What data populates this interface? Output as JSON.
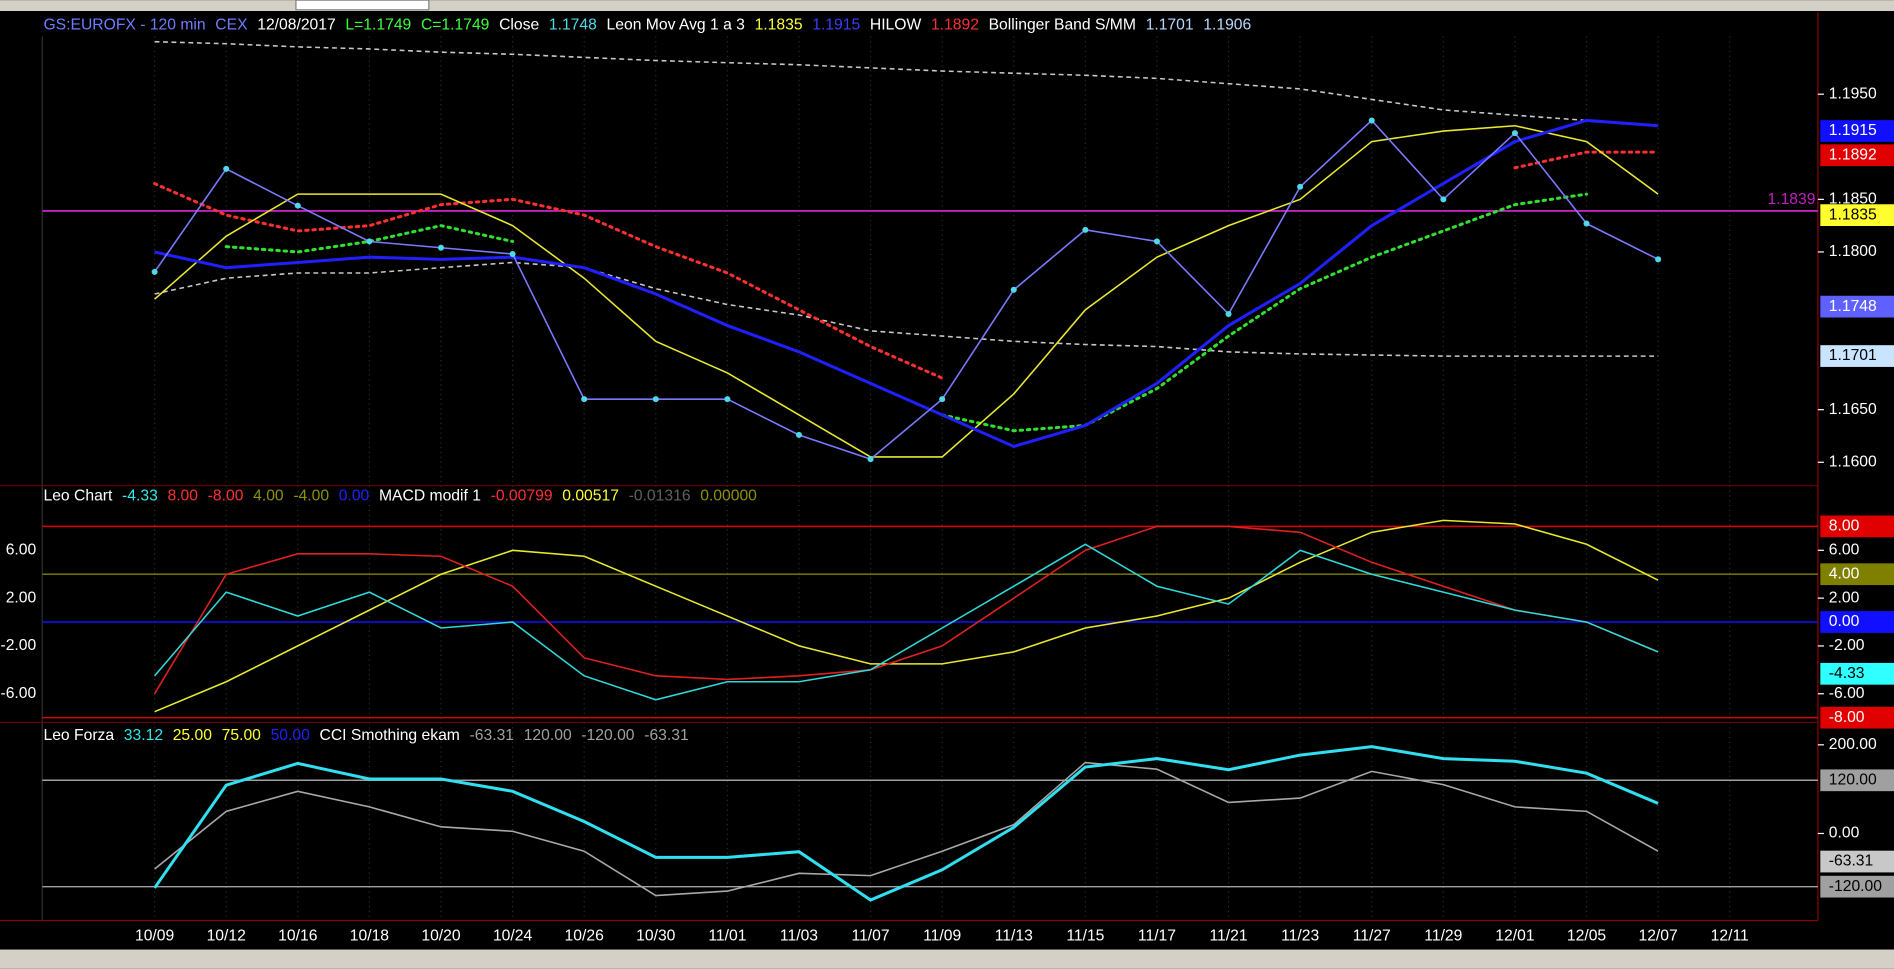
{
  "chart_data": [
    {
      "type": "line",
      "legend": [
        {
          "text": "GS:EUROFX - 120 min",
          "color": "#6f7cff"
        },
        {
          "text": "CEX",
          "color": "#6f7cff"
        },
        {
          "text": "12/08/2017",
          "color": "#ffffff"
        },
        {
          "text": "L=1.1749",
          "color": "#3cff3c"
        },
        {
          "text": "C=1.1749",
          "color": "#3cff3c"
        },
        {
          "text": "Close",
          "color": "#ffffff"
        },
        {
          "text": "1.1748",
          "color": "#4fd8e8"
        },
        {
          "text": "Leon Mov Avg 1 a 3",
          "color": "#ffffff"
        },
        {
          "text": "1.1835",
          "color": "#ffff3c"
        },
        {
          "text": "1.1915",
          "color": "#3c3cff"
        },
        {
          "text": "HILOW",
          "color": "#ffffff"
        },
        {
          "text": "1.1892",
          "color": "#ff3030"
        },
        {
          "text": "Bollinger Band S/MM",
          "color": "#ffffff"
        },
        {
          "text": "1.1701",
          "color": "#b8d8ff"
        },
        {
          "text": "1.1906",
          "color": "#b8d8ff"
        }
      ],
      "categories": [
        "10/09",
        "10/12",
        "10/16",
        "10/18",
        "10/20",
        "10/24",
        "10/26",
        "10/30",
        "11/01",
        "11/03",
        "11/07",
        "11/09",
        "11/13",
        "11/15",
        "11/17",
        "11/21",
        "11/23",
        "11/27",
        "11/29",
        "12/01",
        "12/05",
        "12/07",
        "12/11"
      ],
      "ylim": [
        1.158,
        1.2005
      ],
      "yticks": [
        {
          "value": 1.195,
          "label": "1.1950"
        },
        {
          "value": 1.185,
          "label": "1.1850"
        },
        {
          "value": 1.18,
          "label": "1.1800"
        },
        {
          "value": 1.165,
          "label": "1.1650"
        },
        {
          "value": 1.16,
          "label": "1.1600"
        }
      ],
      "series": [
        {
          "color": "#c8c8c8",
          "dash": "dashed",
          "values": [
            1.2,
            1.1998,
            1.1995,
            1.1993,
            1.199,
            1.1988,
            1.1985,
            1.1982,
            1.198,
            1.1978,
            1.1975,
            1.1972,
            1.197,
            1.1968,
            1.1965,
            1.196,
            1.1955,
            1.1945,
            1.1935,
            1.193,
            1.1925,
            1.192,
            null
          ]
        },
        {
          "color": "#c8c8c8",
          "dash": "dashed",
          "values": [
            1.176,
            1.1775,
            1.178,
            1.178,
            1.1785,
            1.179,
            1.1785,
            1.1765,
            1.175,
            1.174,
            1.1725,
            1.172,
            1.1715,
            1.1712,
            1.171,
            1.1705,
            1.1703,
            1.1702,
            1.1701,
            1.1701,
            1.1701,
            1.1701,
            null
          ]
        },
        {
          "color": "#ff3030",
          "dash": "dotted",
          "values": [
            1.1865,
            1.1835,
            1.182,
            1.1825,
            1.1845,
            1.185,
            1.1835,
            1.1805,
            1.178,
            1.1745,
            1.171,
            1.168,
            null,
            null,
            null,
            null,
            null,
            null,
            null,
            1.188,
            1.1895,
            1.1895,
            null
          ]
        },
        {
          "color": "#30e030",
          "dash": "dotted",
          "values": [
            null,
            1.1805,
            1.18,
            1.181,
            1.1825,
            1.181,
            null,
            null,
            null,
            null,
            null,
            1.1645,
            1.163,
            1.1635,
            1.167,
            1.172,
            1.1765,
            1.1795,
            1.182,
            1.1845,
            1.1855,
            null,
            null
          ]
        },
        {
          "color": "#e8e830",
          "values": [
            1.1755,
            1.1815,
            1.1855,
            1.1855,
            1.1855,
            1.1825,
            1.1775,
            1.1715,
            1.1685,
            1.1645,
            1.1605,
            1.1605,
            1.1665,
            1.1745,
            1.1795,
            1.1825,
            1.185,
            1.1905,
            1.1915,
            1.192,
            1.1905,
            1.1855,
            null
          ]
        },
        {
          "color": "#2020ff",
          "width": 2.5,
          "values": [
            1.18,
            1.1785,
            1.179,
            1.1795,
            1.1793,
            1.1795,
            1.1785,
            1.176,
            1.173,
            1.1705,
            1.1675,
            1.1645,
            1.1615,
            1.1635,
            1.1675,
            1.173,
            1.177,
            1.1825,
            1.1865,
            1.1905,
            1.1925,
            1.192,
            null
          ]
        },
        {
          "color": "#7a7aff",
          "dots": "#4fd8e8",
          "values": [
            1.1781,
            1.1879,
            1.1844,
            1.181,
            1.1804,
            1.1798,
            1.166,
            1.166,
            1.166,
            1.1626,
            1.1603,
            1.166,
            1.1764,
            1.1821,
            1.181,
            1.1741,
            1.1862,
            1.1925,
            1.185,
            1.1913,
            1.1827,
            1.1793,
            null
          ]
        }
      ],
      "lines": [
        {
          "value": 1.1839,
          "label": "1.1839",
          "color": "#c020c0"
        }
      ],
      "markers": [
        {
          "value": 1.1915,
          "label": "1.1915",
          "color": "#1010ff",
          "text_color": "#ffffff"
        },
        {
          "value": 1.1892,
          "label": "1.1892",
          "color": "#e00000",
          "text_color": "#ffffff"
        },
        {
          "value": 1.1835,
          "label": "1.1835",
          "color": "#ffff30",
          "text_color": "#000000"
        },
        {
          "value": 1.1748,
          "label": "1.1748",
          "color": "#6060ff",
          "text_color": "#ffffff"
        },
        {
          "value": 1.1701,
          "label": "1.1701",
          "color": "#c8e4ff",
          "text_color": "#000000"
        }
      ]
    },
    {
      "type": "line",
      "legend": [
        {
          "text": "Leo Chart",
          "color": "#ffffff"
        },
        {
          "text": "-4.33",
          "color": "#30e8e8"
        },
        {
          "text": "8.00",
          "color": "#ff3030"
        },
        {
          "text": "-8.00",
          "color": "#ff3030"
        },
        {
          "text": "4.00",
          "color": "#909000"
        },
        {
          "text": "-4.00",
          "color": "#909000"
        },
        {
          "text": "0.00",
          "color": "#2020ff"
        },
        {
          "text": "MACD modif 1",
          "color": "#ffffff"
        },
        {
          "text": "-0.00799",
          "color": "#ff3030"
        },
        {
          "text": "0.00517",
          "color": "#ffff30"
        },
        {
          "text": "-0.01316",
          "color": "#606060"
        },
        {
          "text": "0.00000",
          "color": "#909000"
        }
      ],
      "ylim": [
        -8.3,
        11.1
      ],
      "yticks": [
        {
          "value": 6,
          "label": "6.00"
        },
        {
          "value": 2,
          "label": "2.00"
        },
        {
          "value": -2,
          "label": "-2.00"
        },
        {
          "value": -6,
          "label": "-6.00"
        }
      ],
      "series": [
        {
          "color": "#e8e830",
          "values": [
            -7.5,
            -5,
            -2,
            1,
            4,
            6,
            5.5,
            3,
            0.5,
            -2,
            -3.5,
            -3.5,
            -2.5,
            -0.5,
            0.5,
            2,
            5,
            7.5,
            8.5,
            8.2,
            6.5,
            3.5,
            null
          ]
        },
        {
          "color": "#e02020",
          "values": [
            -6,
            4,
            5.7,
            5.7,
            5.5,
            3,
            -3,
            -4.5,
            -4.8,
            -4.5,
            -4,
            -2,
            2,
            6,
            8,
            8,
            7.5,
            5,
            3,
            1,
            0,
            -2.5,
            null
          ]
        },
        {
          "color": "#30d8d8",
          "values": [
            -4.5,
            2.5,
            0.5,
            2.5,
            -0.5,
            0,
            -4.5,
            -6.5,
            -5,
            -5,
            -4,
            -0.5,
            3,
            6.5,
            3,
            1.5,
            6,
            4,
            2.5,
            1,
            0,
            -2.5,
            null
          ]
        }
      ],
      "markers": [
        {
          "value": 8,
          "label": "8.00",
          "color": "#e00000",
          "text_color": "#ffffff",
          "line": true
        },
        {
          "value": 4,
          "label": "4.00",
          "color": "#808000",
          "text_color": "#ffffff",
          "line": true
        },
        {
          "value": 0,
          "label": "0.00",
          "color": "#1010ff",
          "text_color": "#ffffff",
          "line": true
        },
        {
          "value": -4.33,
          "label": "-4.33",
          "color": "#30ffff",
          "text_color": "#000000",
          "line": false
        },
        {
          "value": -8,
          "label": "-8.00",
          "color": "#e00000",
          "text_color": "#ffffff",
          "line": true
        }
      ]
    },
    {
      "type": "line",
      "legend": [
        {
          "text": "Leo Forza",
          "color": "#ffffff"
        },
        {
          "text": "33.12",
          "color": "#30e8e8"
        },
        {
          "text": "25.00",
          "color": "#ffff30"
        },
        {
          "text": "75.00",
          "color": "#ffff30"
        },
        {
          "text": "50.00",
          "color": "#2020ff"
        },
        {
          "text": "CCI Smothing ekam",
          "color": "#ffffff"
        },
        {
          "text": "-63.31",
          "color": "#a0a0a0"
        },
        {
          "text": "120.00",
          "color": "#a0a0a0"
        },
        {
          "text": "-120.00",
          "color": "#a0a0a0"
        },
        {
          "text": "-63.31",
          "color": "#a0a0a0"
        }
      ],
      "ylim": [
        -191,
        245
      ],
      "yticks": [
        {
          "value": 200,
          "label": "200.00"
        },
        {
          "value": 0,
          "label": "0.00"
        }
      ],
      "series": [
        {
          "color": "#a8a8a8",
          "values": [
            -80,
            50,
            95,
            60,
            15,
            5,
            -40,
            -140,
            -130,
            -90,
            -95,
            -40,
            20,
            160,
            145,
            70,
            80,
            140,
            110,
            60,
            50,
            -40,
            null
          ]
        },
        {
          "color": "#30e0f0",
          "width": 2.5,
          "values": [
            -123,
            109,
            158,
            123,
            123,
            95,
            27,
            -54,
            -54,
            -41,
            -150,
            -82,
            14,
            150,
            169,
            144,
            177,
            196,
            169,
            163,
            136,
            68,
            null
          ]
        }
      ],
      "markers": [
        {
          "value": 120,
          "label": "120.00",
          "color": "#a0a0a0",
          "text_color": "#000000",
          "line": true
        },
        {
          "value": -63.31,
          "label": "-63.31",
          "color": "#c8c8c8",
          "text_color": "#000000",
          "line": false
        },
        {
          "value": -120,
          "label": "-120.00",
          "color": "#a0a0a0",
          "text_color": "#000000",
          "line": true
        }
      ]
    }
  ]
}
